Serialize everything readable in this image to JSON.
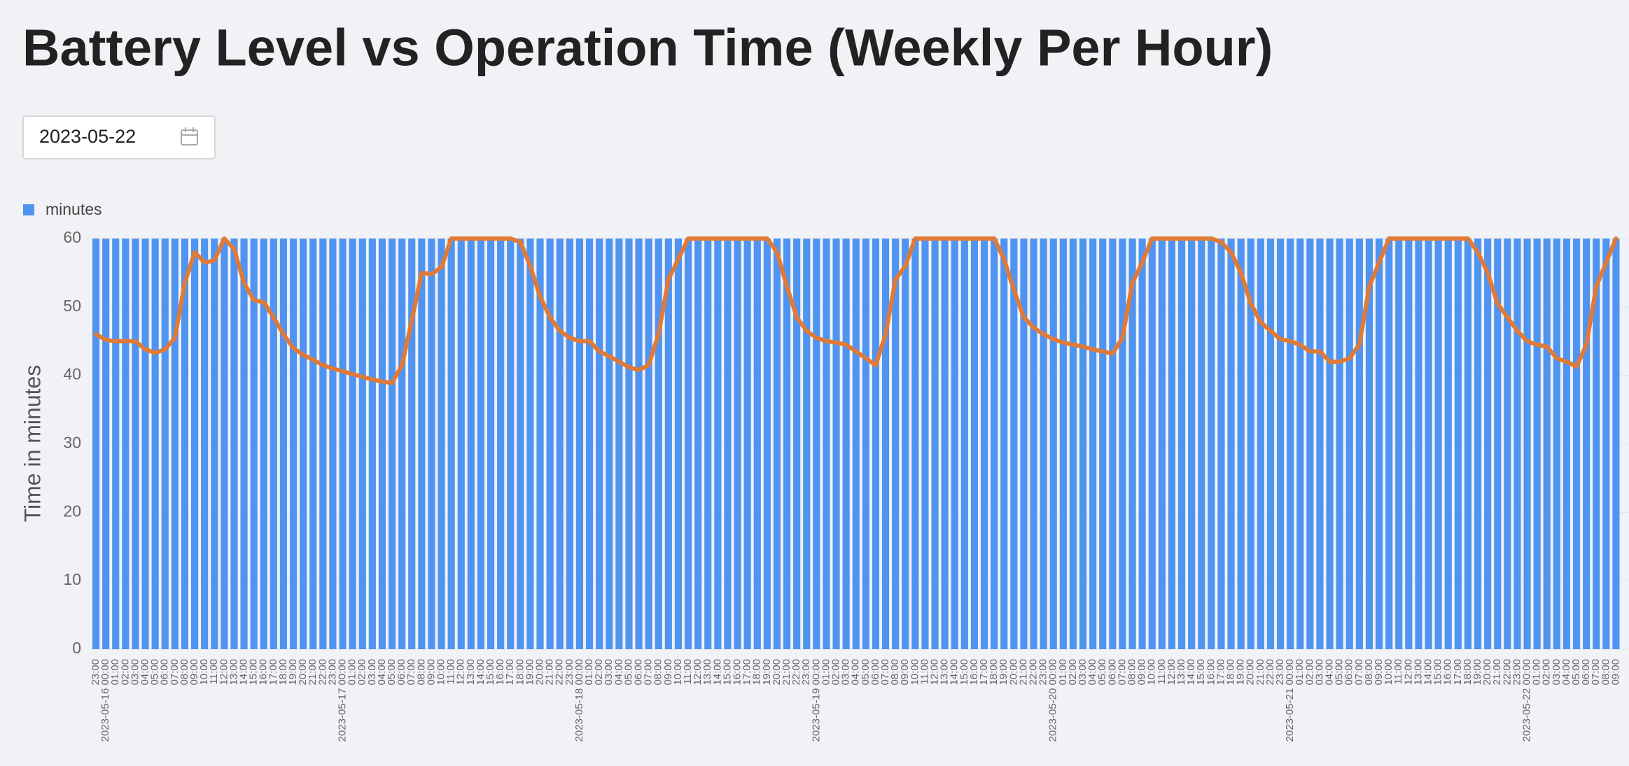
{
  "page_title": "Battery Level vs Operation Time (Weekly Per Hour)",
  "date_picker": {
    "value": "2023-05-22"
  },
  "chart_data": {
    "type": "bar",
    "y_label": "Time in minutes",
    "ylim": [
      0,
      60
    ],
    "yticks": [
      0,
      10,
      20,
      30,
      40,
      50,
      60
    ],
    "grid": true,
    "legend": "top-left",
    "categories": [
      "23:00",
      "2023-05-16 00:00",
      "01:00",
      "02:00",
      "03:00",
      "04:00",
      "05:00",
      "06:00",
      "07:00",
      "08:00",
      "09:00",
      "10:00",
      "11:00",
      "12:00",
      "13:00",
      "14:00",
      "15:00",
      "16:00",
      "17:00",
      "18:00",
      "19:00",
      "20:00",
      "21:00",
      "22:00",
      "23:00",
      "2023-05-17 00:00",
      "01:00",
      "02:00",
      "03:00",
      "04:00",
      "05:00",
      "06:00",
      "07:00",
      "08:00",
      "09:00",
      "10:00",
      "11:00",
      "12:00",
      "13:00",
      "14:00",
      "15:00",
      "16:00",
      "17:00",
      "18:00",
      "19:00",
      "20:00",
      "21:00",
      "22:00",
      "23:00",
      "2023-05-18 00:00",
      "01:00",
      "02:00",
      "03:00",
      "04:00",
      "05:00",
      "06:00",
      "07:00",
      "08:00",
      "09:00",
      "10:00",
      "11:00",
      "12:00",
      "13:00",
      "14:00",
      "15:00",
      "16:00",
      "17:00",
      "18:00",
      "19:00",
      "20:00",
      "21:00",
      "22:00",
      "23:00",
      "2023-05-19 00:00",
      "01:00",
      "02:00",
      "03:00",
      "04:00",
      "05:00",
      "06:00",
      "07:00",
      "08:00",
      "09:00",
      "10:00",
      "11:00",
      "12:00",
      "13:00",
      "14:00",
      "15:00",
      "16:00",
      "17:00",
      "18:00",
      "19:00",
      "20:00",
      "21:00",
      "22:00",
      "23:00",
      "2023-05-20 00:00",
      "01:00",
      "02:00",
      "03:00",
      "04:00",
      "05:00",
      "06:00",
      "07:00",
      "08:00",
      "09:00",
      "10:00",
      "11:00",
      "12:00",
      "13:00",
      "14:00",
      "15:00",
      "16:00",
      "17:00",
      "18:00",
      "19:00",
      "20:00",
      "21:00",
      "22:00",
      "23:00",
      "2023-05-21 00:00",
      "01:00",
      "02:00",
      "03:00",
      "04:00",
      "05:00",
      "06:00",
      "07:00",
      "08:00",
      "09:00",
      "10:00",
      "11:00",
      "12:00",
      "13:00",
      "14:00",
      "15:00",
      "16:00",
      "17:00",
      "18:00",
      "19:00",
      "20:00",
      "21:00",
      "22:00",
      "23:00",
      "2023-05-22 00:00",
      "01:00",
      "02:00",
      "03:00",
      "04:00",
      "05:00",
      "06:00",
      "07:00",
      "08:00",
      "09:00"
    ],
    "series": [
      {
        "name": "minutes",
        "color": "#5094f2",
        "values": [
          60,
          60,
          60,
          60,
          60,
          60,
          60,
          60,
          60,
          60,
          60,
          60,
          60,
          60,
          60,
          60,
          60,
          60,
          60,
          60,
          60,
          60,
          60,
          60,
          60,
          60,
          60,
          60,
          60,
          60,
          60,
          60,
          60,
          60,
          60,
          60,
          60,
          60,
          60,
          60,
          60,
          60,
          60,
          60,
          60,
          60,
          60,
          60,
          60,
          60,
          60,
          60,
          60,
          60,
          60,
          60,
          60,
          60,
          60,
          60,
          60,
          60,
          60,
          60,
          60,
          60,
          60,
          60,
          60,
          60,
          60,
          60,
          60,
          60,
          60,
          60,
          60,
          60,
          60,
          60,
          60,
          60,
          60,
          60,
          60,
          60,
          60,
          60,
          60,
          60,
          60,
          60,
          60,
          60,
          60,
          60,
          60,
          60,
          60,
          60,
          60,
          60,
          60,
          60,
          60,
          60,
          60,
          60,
          60,
          60,
          60,
          60,
          60,
          60,
          60,
          60,
          60,
          60,
          60,
          60,
          60,
          60,
          60,
          60,
          60,
          60,
          60,
          60,
          60,
          60,
          60,
          60,
          60,
          60,
          60,
          60,
          60,
          60,
          60,
          60,
          60,
          60,
          60,
          60,
          60,
          60,
          60,
          60,
          60,
          60,
          60,
          60,
          60,
          60,
          60
        ]
      },
      {
        "type": "line",
        "color": "#e07a36",
        "values": [
          46,
          45.2,
          45,
          45,
          45,
          43.8,
          43.3,
          43.8,
          45.5,
          53.5,
          58,
          56.5,
          56.8,
          60,
          58.5,
          53.5,
          51,
          50.7,
          48.5,
          46,
          44,
          43,
          42.3,
          41.5,
          41,
          40.6,
          40.2,
          39.8,
          39.4,
          39.1,
          38.9,
          41.5,
          48,
          55,
          54.8,
          55.8,
          60,
          60,
          60,
          60,
          60,
          60,
          60,
          59.5,
          56,
          51.5,
          48.5,
          46.5,
          45.5,
          45,
          45,
          43.5,
          42.8,
          42,
          41.2,
          40.8,
          41.5,
          46,
          54,
          57,
          60,
          60,
          60,
          60,
          60,
          60,
          60,
          60,
          60,
          58,
          53,
          48.5,
          46.5,
          45.5,
          45,
          44.8,
          44.5,
          43.5,
          42.5,
          41.5,
          46,
          54,
          56,
          60,
          60,
          60,
          60,
          60,
          60,
          60,
          60,
          60,
          57,
          52.5,
          48.5,
          47,
          46,
          45.3,
          44.8,
          44.5,
          44.2,
          43.8,
          43.5,
          43.2,
          45.5,
          53.5,
          56.5,
          60,
          60,
          60,
          60,
          60,
          60,
          60,
          59.5,
          58,
          55,
          50.5,
          47.8,
          46.5,
          45.3,
          45,
          44.5,
          43.5,
          43.5,
          42,
          42,
          42.5,
          44.5,
          53,
          56.5,
          60,
          60,
          60,
          60,
          60,
          60,
          60,
          60,
          60,
          58,
          55,
          50.5,
          48.5,
          46.5,
          45,
          44.5,
          44.2,
          42.5,
          42,
          41.3,
          44.5,
          53,
          56.5,
          60
        ]
      }
    ]
  }
}
